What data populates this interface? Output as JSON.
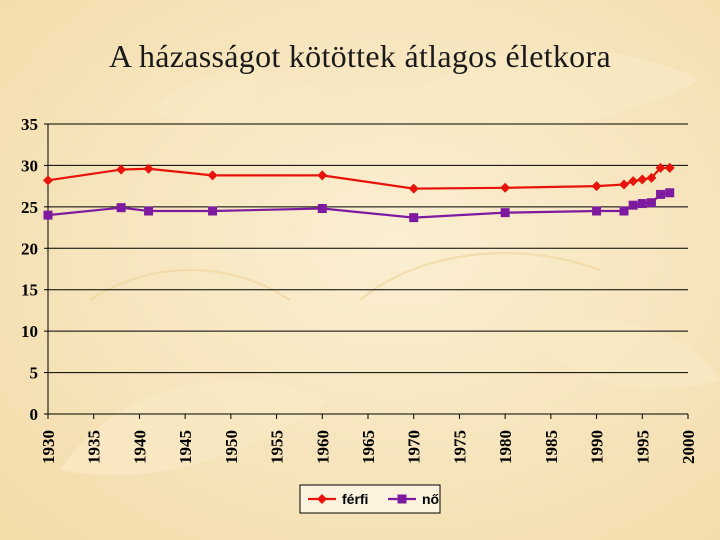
{
  "title": "A házasságot kötöttek átlagos életkora",
  "colors": {
    "ferfi": "#e8140c",
    "no": "#7d1aa0",
    "background": "#f6e6bf"
  },
  "chart_data": {
    "type": "line",
    "title": "A házasságot kötöttek átlagos életkora",
    "xlabel": "",
    "ylabel": "",
    "xlim": [
      1930,
      2000
    ],
    "ylim": [
      0,
      35
    ],
    "y_ticks": [
      0,
      5,
      10,
      15,
      20,
      25,
      30,
      35
    ],
    "x_ticks": [
      1930,
      1935,
      1940,
      1945,
      1950,
      1955,
      1960,
      1965,
      1970,
      1975,
      1980,
      1985,
      1990,
      1995,
      2000
    ],
    "grid": "horizontal",
    "legend_position": "bottom",
    "series": [
      {
        "name": "férfi",
        "marker": "diamond",
        "x": [
          1930,
          1938,
          1941,
          1948,
          1960,
          1970,
          1980,
          1990,
          1993,
          1994,
          1995,
          1996,
          1997,
          1998
        ],
        "y": [
          28.2,
          29.5,
          29.6,
          28.8,
          28.8,
          27.2,
          27.3,
          27.5,
          27.7,
          28.1,
          28.3,
          28.5,
          29.7,
          29.7
        ]
      },
      {
        "name": "nő",
        "marker": "square",
        "x": [
          1930,
          1938,
          1941,
          1948,
          1960,
          1970,
          1980,
          1990,
          1993,
          1994,
          1995,
          1996,
          1997,
          1998
        ],
        "y": [
          24.0,
          24.9,
          24.5,
          24.5,
          24.8,
          23.7,
          24.3,
          24.5,
          24.5,
          25.2,
          25.4,
          25.5,
          26.5,
          26.7
        ]
      }
    ]
  }
}
